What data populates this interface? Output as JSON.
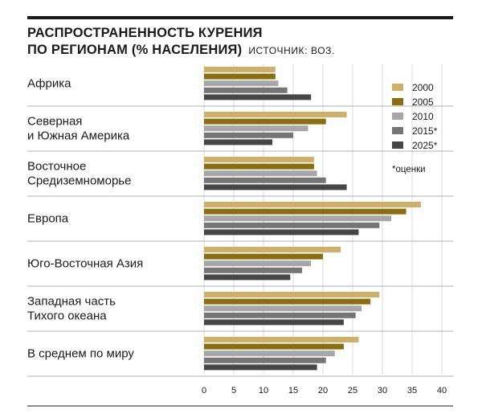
{
  "header": {
    "title_line1": "РАСПРОСТРАНЕННОСТЬ КУРЕНИЯ",
    "title_line2": "ПО РЕГИОНАМ (% НАСЕЛЕНИЯ)",
    "source": "ИСТОЧНИК: ВОЗ."
  },
  "colors": {
    "2000": "#cfb06a",
    "2005": "#8c6c10",
    "2010": "#a7a7a7",
    "2015*": "#767474",
    "2025*": "#474646",
    "rules": "#1a1a1a",
    "grid": "#cccccc",
    "separators": "#999999"
  },
  "chart_data": {
    "type": "bar",
    "orientation": "horizontal",
    "title": "РАСПРОСТРАНЕННОСТЬ КУРЕНИЯ ПО РЕГИОНАМ (% НАСЕЛЕНИЯ)",
    "categories": [
      [
        "Африка"
      ],
      [
        "Северная",
        "и Южная Америка"
      ],
      [
        "Восточное",
        "Средиземноморье"
      ],
      [
        "Европа"
      ],
      [
        "Юго-Восточная Азия"
      ],
      [
        "Западная часть",
        "Тихого океана"
      ],
      [
        "В среднем по миру"
      ]
    ],
    "series": [
      {
        "name": "2000",
        "values": [
          12,
          24,
          18.5,
          36.5,
          23,
          29.5,
          26
        ]
      },
      {
        "name": "2005",
        "values": [
          12,
          20.5,
          18.5,
          34,
          20,
          28,
          23.5
        ]
      },
      {
        "name": "2010",
        "values": [
          12.5,
          17.5,
          19,
          31.5,
          18,
          26.5,
          22
        ]
      },
      {
        "name": "2015*",
        "values": [
          14,
          15,
          20.5,
          29.5,
          16.5,
          25.5,
          20.5
        ]
      },
      {
        "name": "2025*",
        "values": [
          18,
          11.5,
          24,
          26,
          14.5,
          23.5,
          19
        ]
      }
    ],
    "xlim": [
      0,
      40
    ],
    "xticks": [
      0,
      5,
      10,
      15,
      20,
      25,
      30,
      35,
      40
    ],
    "grid": true,
    "legend_position": "top-right",
    "note": "*оценки"
  }
}
